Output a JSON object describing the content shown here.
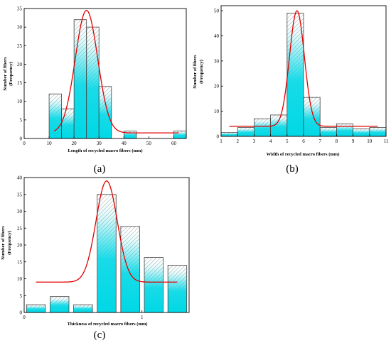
{
  "colors": {
    "bar_fill": "#00d8e6",
    "bar_hatch": "#8a8a8a",
    "bar_outline": "#444444",
    "fit_curve": "#e00000"
  },
  "chart_data": [
    {
      "type": "bar",
      "panel_label": "(a)",
      "xlabel": "Length of recycled macro fibers (mm)",
      "ylabel_line1": "Number of fibers",
      "ylabel_line2": "(Frequency)",
      "xlim": [
        0,
        65
      ],
      "ylim": [
        0,
        35
      ],
      "xticks": [
        0,
        10,
        20,
        30,
        40,
        50,
        60
      ],
      "yticks": [
        0,
        5,
        10,
        15,
        20,
        25,
        30,
        35
      ],
      "bar_width": 5,
      "bars": [
        {
          "x": 12.5,
          "value": 12
        },
        {
          "x": 17.5,
          "value": 8
        },
        {
          "x": 22.5,
          "value": 32
        },
        {
          "x": 27.5,
          "value": 30
        },
        {
          "x": 32.5,
          "value": 14
        },
        {
          "x": 42.5,
          "value": 2
        },
        {
          "x": 62.5,
          "value": 2
        }
      ],
      "fit": {
        "amplitude": 33,
        "center": 25,
        "sigma": 4.5,
        "baseline": 1.5,
        "x_start": 12,
        "x_end": 62
      }
    },
    {
      "type": "bar",
      "panel_label": "(b)",
      "xlabel": "Width of recycled macro fibers (mm)",
      "ylabel_line1": "Number of fibers",
      "ylabel_line2": "(Frequency)",
      "xlim": [
        1,
        11
      ],
      "ylim": [
        0,
        52
      ],
      "xticks": [
        1,
        2,
        3,
        4,
        5,
        6,
        7,
        8,
        9,
        10,
        11
      ],
      "yticks": [
        0,
        10,
        20,
        30,
        40,
        50
      ],
      "bar_width": 1,
      "bars": [
        {
          "x": 1.5,
          "value": 1.5
        },
        {
          "x": 2.5,
          "value": 3.5
        },
        {
          "x": 3.5,
          "value": 7
        },
        {
          "x": 4.5,
          "value": 8.5
        },
        {
          "x": 5.5,
          "value": 49
        },
        {
          "x": 6.5,
          "value": 15.5
        },
        {
          "x": 7.5,
          "value": 3.5
        },
        {
          "x": 8.5,
          "value": 5
        },
        {
          "x": 9.5,
          "value": 3
        },
        {
          "x": 10.5,
          "value": 3.5
        }
      ],
      "fit": {
        "amplitude": 46,
        "center": 5.6,
        "sigma": 0.45,
        "baseline": 4,
        "x_start": 1.5,
        "x_end": 10.5
      }
    },
    {
      "type": "bar",
      "panel_label": "(c)",
      "xlabel": "Thickness of recycled macro fibers (mm)",
      "ylabel_line1": "Number of fibers",
      "ylabel_line2": "(Frequency)",
      "xlim": [
        0,
        1.4
      ],
      "ylim": [
        0,
        40
      ],
      "xticks": [
        0,
        1
      ],
      "yticks": [
        0,
        5,
        10,
        15,
        20,
        25,
        30,
        35,
        40
      ],
      "bar_width": 0.16,
      "bars": [
        {
          "x": 0.1,
          "value": 2.3
        },
        {
          "x": 0.3,
          "value": 4.7
        },
        {
          "x": 0.5,
          "value": 2.3
        },
        {
          "x": 0.7,
          "value": 35
        },
        {
          "x": 0.9,
          "value": 25.5
        },
        {
          "x": 1.1,
          "value": 16.3
        },
        {
          "x": 1.3,
          "value": 14
        }
      ],
      "fit": {
        "amplitude": 30,
        "center": 0.7,
        "sigma": 0.09,
        "baseline": 9,
        "x_start": 0.1,
        "x_end": 1.3
      }
    }
  ]
}
